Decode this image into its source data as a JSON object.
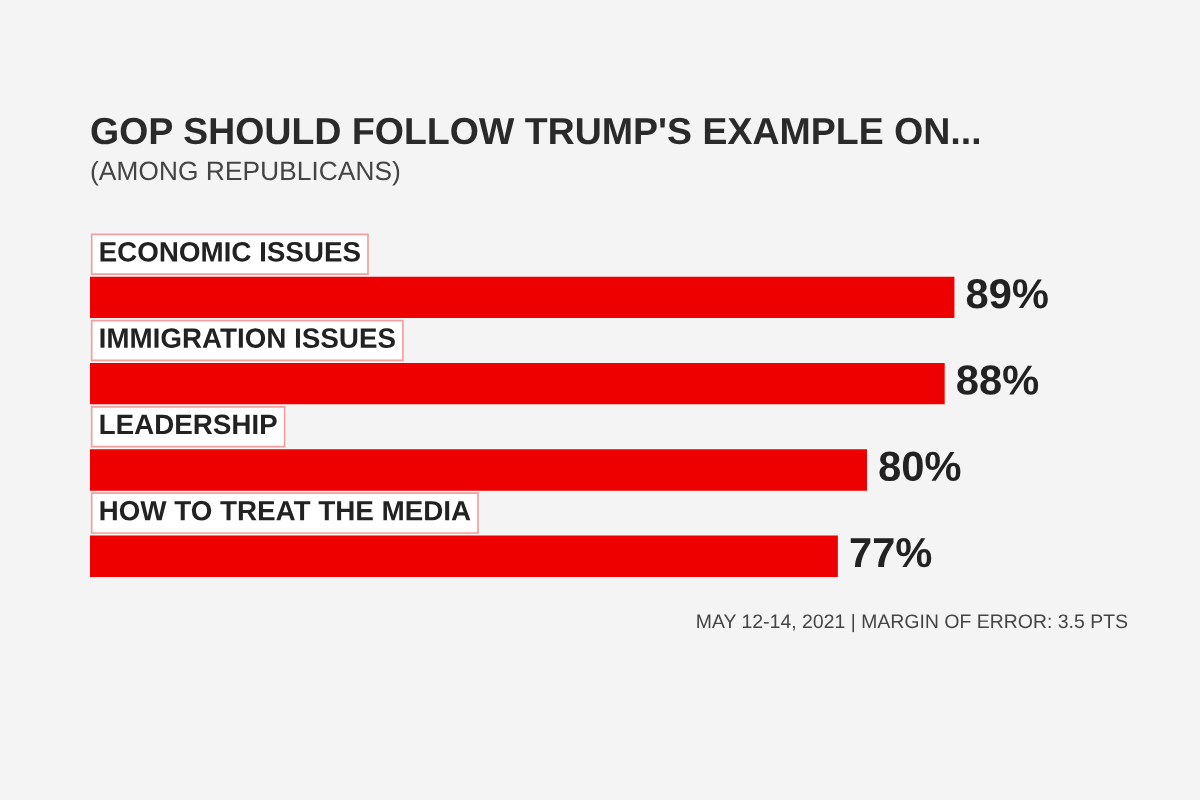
{
  "chart_data": {
    "type": "bar",
    "orientation": "horizontal",
    "title": "GOP SHOULD FOLLOW TRUMP'S EXAMPLE ON...",
    "subtitle": "(AMONG REPUBLICANS)",
    "categories": [
      "ECONOMIC ISSUES",
      "IMMIGRATION ISSUES",
      "LEADERSHIP",
      "HOW TO TREAT THE MEDIA"
    ],
    "values": [
      89,
      88,
      80,
      77
    ],
    "color": "#ee0000",
    "value_labels": [
      "89%",
      "88%",
      "80%",
      "77%"
    ],
    "annotations": [
      "MAY 12-14, 2021 | MARGIN OF ERROR: 3.5 PTS"
    ]
  }
}
